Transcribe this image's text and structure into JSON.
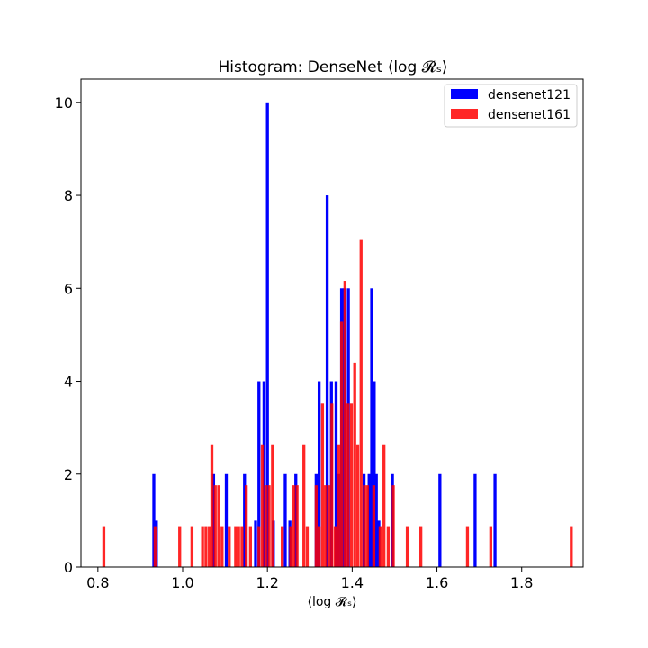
{
  "chart_data": {
    "type": "bar",
    "title": "Histogram: DenseNet ⟨log 𝓡ₛ⟩",
    "xlabel": "⟨log 𝓡ₛ⟩",
    "ylabel": "",
    "xlim": [
      0.76,
      1.945
    ],
    "ylim": [
      0,
      10.5
    ],
    "xticks": [
      0.8,
      1.0,
      1.2,
      1.4,
      1.6,
      1.8
    ],
    "yticks": [
      0,
      2,
      4,
      6,
      8,
      10
    ],
    "grid": false,
    "legend_position": "top-right",
    "series": [
      {
        "name": "densenet121",
        "color": "#0000ff",
        "bins": [
          {
            "x": 0.932,
            "y": 2
          },
          {
            "x": 0.938,
            "y": 1
          },
          {
            "x": 1.073,
            "y": 2
          },
          {
            "x": 1.103,
            "y": 2
          },
          {
            "x": 1.146,
            "y": 2
          },
          {
            "x": 1.172,
            "y": 1
          },
          {
            "x": 1.18,
            "y": 4
          },
          {
            "x": 1.192,
            "y": 4
          },
          {
            "x": 1.2,
            "y": 10
          },
          {
            "x": 1.214,
            "y": 1
          },
          {
            "x": 1.242,
            "y": 2
          },
          {
            "x": 1.253,
            "y": 1
          },
          {
            "x": 1.267,
            "y": 2
          },
          {
            "x": 1.315,
            "y": 2
          },
          {
            "x": 1.322,
            "y": 4
          },
          {
            "x": 1.341,
            "y": 8
          },
          {
            "x": 1.351,
            "y": 4
          },
          {
            "x": 1.362,
            "y": 4
          },
          {
            "x": 1.368,
            "y": 2
          },
          {
            "x": 1.375,
            "y": 6
          },
          {
            "x": 1.381,
            "y": 6
          },
          {
            "x": 1.391,
            "y": 6
          },
          {
            "x": 1.428,
            "y": 2
          },
          {
            "x": 1.44,
            "y": 2
          },
          {
            "x": 1.446,
            "y": 6
          },
          {
            "x": 1.452,
            "y": 4
          },
          {
            "x": 1.457,
            "y": 2
          },
          {
            "x": 1.463,
            "y": 1
          },
          {
            "x": 1.495,
            "y": 2
          },
          {
            "x": 1.607,
            "y": 2
          },
          {
            "x": 1.69,
            "y": 2
          },
          {
            "x": 1.737,
            "y": 2
          }
        ]
      },
      {
        "name": "densenet161",
        "color": "#ff0000",
        "bins": [
          {
            "x": 0.814,
            "y": 0.88
          },
          {
            "x": 0.935,
            "y": 0.88
          },
          {
            "x": 0.993,
            "y": 0.88
          },
          {
            "x": 1.022,
            "y": 0.88
          },
          {
            "x": 1.047,
            "y": 0.88
          },
          {
            "x": 1.055,
            "y": 0.88
          },
          {
            "x": 1.063,
            "y": 0.88
          },
          {
            "x": 1.069,
            "y": 2.64
          },
          {
            "x": 1.077,
            "y": 1.76
          },
          {
            "x": 1.085,
            "y": 1.76
          },
          {
            "x": 1.093,
            "y": 0.88
          },
          {
            "x": 1.11,
            "y": 0.88
          },
          {
            "x": 1.125,
            "y": 0.88
          },
          {
            "x": 1.132,
            "y": 0.88
          },
          {
            "x": 1.14,
            "y": 0.88
          },
          {
            "x": 1.15,
            "y": 1.76
          },
          {
            "x": 1.16,
            "y": 0.88
          },
          {
            "x": 1.18,
            "y": 0.88
          },
          {
            "x": 1.188,
            "y": 2.64
          },
          {
            "x": 1.196,
            "y": 1.76
          },
          {
            "x": 1.204,
            "y": 1.76
          },
          {
            "x": 1.212,
            "y": 2.64
          },
          {
            "x": 1.235,
            "y": 0.88
          },
          {
            "x": 1.255,
            "y": 0.88
          },
          {
            "x": 1.262,
            "y": 1.76
          },
          {
            "x": 1.27,
            "y": 1.76
          },
          {
            "x": 1.286,
            "y": 2.64
          },
          {
            "x": 1.294,
            "y": 0.88
          },
          {
            "x": 1.315,
            "y": 1.76
          },
          {
            "x": 1.322,
            "y": 0.88
          },
          {
            "x": 1.33,
            "y": 3.52
          },
          {
            "x": 1.337,
            "y": 1.76
          },
          {
            "x": 1.345,
            "y": 1.76
          },
          {
            "x": 1.352,
            "y": 3.52
          },
          {
            "x": 1.36,
            "y": 0.88
          },
          {
            "x": 1.368,
            "y": 2.64
          },
          {
            "x": 1.375,
            "y": 5.28
          },
          {
            "x": 1.383,
            "y": 6.16
          },
          {
            "x": 1.39,
            "y": 3.52
          },
          {
            "x": 1.398,
            "y": 3.52
          },
          {
            "x": 1.406,
            "y": 4.4
          },
          {
            "x": 1.413,
            "y": 2.64
          },
          {
            "x": 1.421,
            "y": 7.04
          },
          {
            "x": 1.429,
            "y": 1.76
          },
          {
            "x": 1.436,
            "y": 1.76
          },
          {
            "x": 1.451,
            "y": 1.76
          },
          {
            "x": 1.466,
            "y": 0.88
          },
          {
            "x": 1.475,
            "y": 2.64
          },
          {
            "x": 1.485,
            "y": 0.88
          },
          {
            "x": 1.497,
            "y": 1.76
          },
          {
            "x": 1.53,
            "y": 0.88
          },
          {
            "x": 1.562,
            "y": 0.88
          },
          {
            "x": 1.672,
            "y": 0.88
          },
          {
            "x": 1.727,
            "y": 0.88
          },
          {
            "x": 1.917,
            "y": 0.88
          }
        ]
      }
    ]
  }
}
